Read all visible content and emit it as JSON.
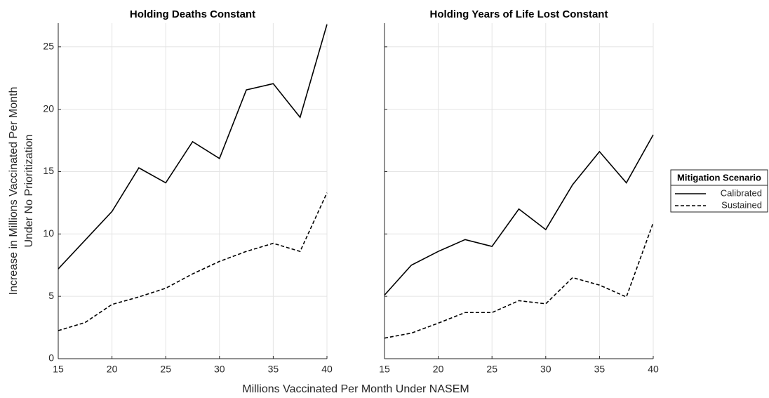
{
  "chart_data": [
    {
      "type": "line",
      "title": "Holding Deaths Constant",
      "x": [
        15,
        17.5,
        20,
        22.5,
        25,
        27.5,
        30,
        32.5,
        35,
        37.5,
        40
      ],
      "series": [
        {
          "name": "Calibrated",
          "color": "#000000",
          "dash": "solid",
          "values": [
            7.2,
            9.5,
            11.8,
            15.3,
            14.1,
            17.4,
            16.05,
            21.55,
            22.05,
            19.35,
            26.8
          ]
        },
        {
          "name": "Sustained",
          "color": "#000000",
          "dash": "dashed",
          "values": [
            2.25,
            2.9,
            4.35,
            4.95,
            5.65,
            6.8,
            7.8,
            8.6,
            9.25,
            8.6,
            13.3
          ]
        }
      ],
      "xlim": [
        15,
        40
      ],
      "xticks": [
        15,
        20,
        25,
        30,
        35,
        40
      ],
      "ylim": [
        0,
        26.9
      ],
      "yticks": [
        0,
        5,
        10,
        15,
        20,
        25
      ],
      "ytick_labels_shown": true,
      "grid": true
    },
    {
      "type": "line",
      "title": "Holding Years of Life Lost Constant",
      "x": [
        15,
        17.5,
        20,
        22.5,
        25,
        27.5,
        30,
        32.5,
        35,
        37.5,
        40
      ],
      "series": [
        {
          "color": "#000000",
          "dash": "solid",
          "values": [
            5.1,
            7.5,
            8.6,
            9.55,
            9.0,
            12.0,
            10.35,
            13.95,
            16.6,
            14.1,
            17.95
          ]
        },
        {
          "color": "#000000",
          "dash": "dashed",
          "values": [
            1.65,
            2.05,
            2.85,
            3.7,
            3.7,
            4.65,
            4.4,
            6.5,
            5.9,
            4.95,
            10.9
          ]
        }
      ],
      "xlim": [
        15,
        40
      ],
      "xticks": [
        15,
        20,
        25,
        30,
        35,
        40
      ],
      "ylim": [
        0,
        26.9
      ],
      "yticks": [
        0,
        5,
        10,
        15,
        20,
        25
      ],
      "ytick_labels_shown": false,
      "grid": true
    }
  ],
  "xlabel": "Millions Vaccinated Per Month Under NASEM",
  "ylabel": [
    "Increase in Millions Vaccinated Per Month",
    "Under No Prioritization"
  ],
  "legend": {
    "title": "Mitigation Scenario",
    "location": "right"
  }
}
